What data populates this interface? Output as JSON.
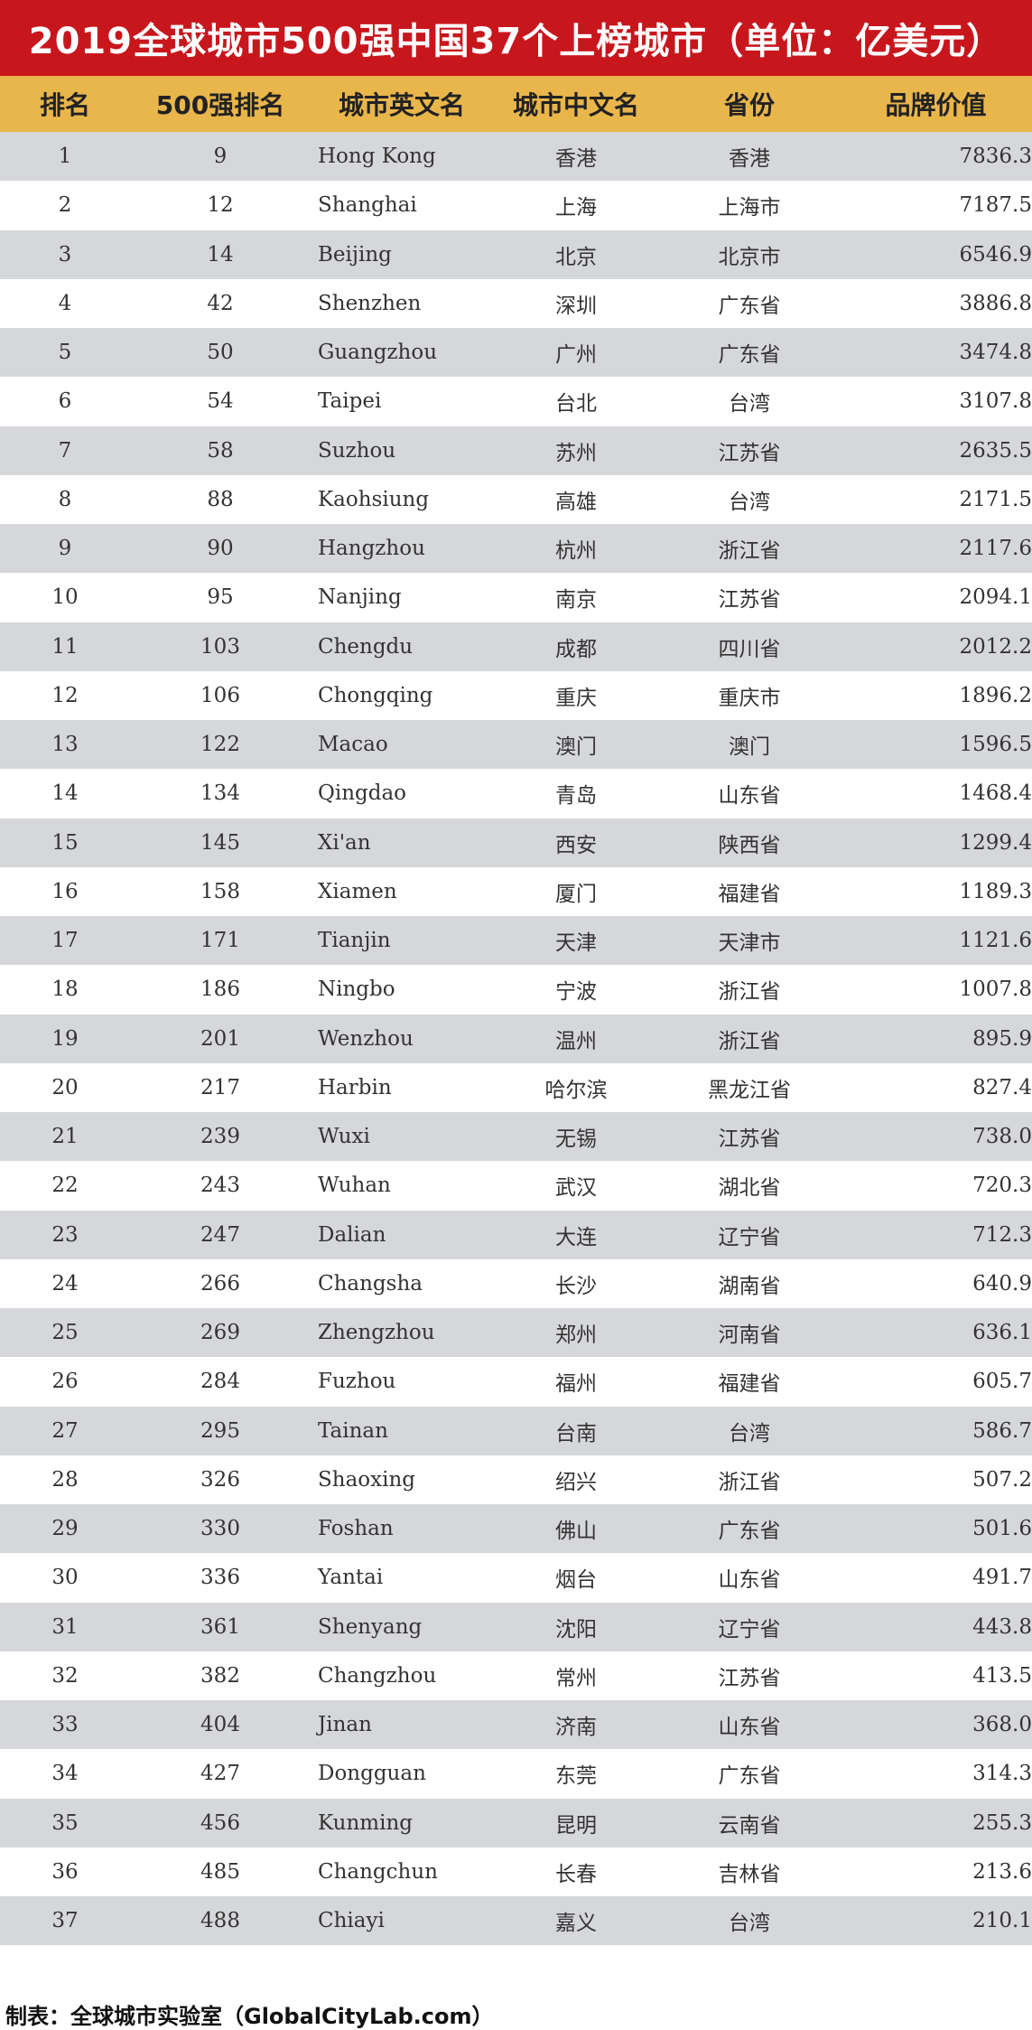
{
  "title": "2019全球城市500强中国37个上榜城市（单位：亿美元）",
  "header": [
    "排名",
    "500强排名",
    "城市英文名",
    "城市中文名",
    "省份",
    "品牌价值"
  ],
  "rows": [
    [
      "1",
      "9",
      "Hong Kong",
      "香港",
      "香港",
      "7836.3"
    ],
    [
      "2",
      "12",
      "Shanghai",
      "上海",
      "上海市",
      "7187.5"
    ],
    [
      "3",
      "14",
      "Beijing",
      "北京",
      "北京市",
      "6546.9"
    ],
    [
      "4",
      "42",
      "Shenzhen",
      "深圳",
      "广东省",
      "3886.8"
    ],
    [
      "5",
      "50",
      "Guangzhou",
      "广州",
      "广东省",
      "3474.8"
    ],
    [
      "6",
      "54",
      "Taipei",
      "台北",
      "台湾",
      "3107.8"
    ],
    [
      "7",
      "58",
      "Suzhou",
      "苏州",
      "江苏省",
      "2635.5"
    ],
    [
      "8",
      "88",
      "Kaohsiung",
      "高雄",
      "台湾",
      "2171.5"
    ],
    [
      "9",
      "90",
      "Hangzhou",
      "杭州",
      "浙江省",
      "2117.6"
    ],
    [
      "10",
      "95",
      "Nanjing",
      "南京",
      "江苏省",
      "2094.1"
    ],
    [
      "11",
      "103",
      "Chengdu",
      "成都",
      "四川省",
      "2012.2"
    ],
    [
      "12",
      "106",
      "Chongqing",
      "重庆",
      "重庆市",
      "1896.2"
    ],
    [
      "13",
      "122",
      "Macao",
      "澳门",
      "澳门",
      "1596.5"
    ],
    [
      "14",
      "134",
      "Qingdao",
      "青岛",
      "山东省",
      "1468.4"
    ],
    [
      "15",
      "145",
      "Xi'an",
      "西安",
      "陕西省",
      "1299.4"
    ],
    [
      "16",
      "158",
      "Xiamen",
      "厦门",
      "福建省",
      "1189.3"
    ],
    [
      "17",
      "171",
      "Tianjin",
      "天津",
      "天津市",
      "1121.6"
    ],
    [
      "18",
      "186",
      "Ningbo",
      "宁波",
      "浙江省",
      "1007.8"
    ],
    [
      "19",
      "201",
      "Wenzhou",
      "温州",
      "浙江省",
      "895.9"
    ],
    [
      "20",
      "217",
      "Harbin",
      "哈尔滨",
      "黑龙江省",
      "827.4"
    ],
    [
      "21",
      "239",
      "Wuxi",
      "无锡",
      "江苏省",
      "738.0"
    ],
    [
      "22",
      "243",
      "Wuhan",
      "武汉",
      "湖北省",
      "720.3"
    ],
    [
      "23",
      "247",
      "Dalian",
      "大连",
      "辽宁省",
      "712.3"
    ],
    [
      "24",
      "266",
      "Changsha",
      "长沙",
      "湖南省",
      "640.9"
    ],
    [
      "25",
      "269",
      "Zhengzhou",
      "郑州",
      "河南省",
      "636.1"
    ],
    [
      "26",
      "284",
      "Fuzhou",
      "福州",
      "福建省",
      "605.7"
    ],
    [
      "27",
      "295",
      "Tainan",
      "台南",
      "台湾",
      "586.7"
    ],
    [
      "28",
      "326",
      "Shaoxing",
      "绍兴",
      "浙江省",
      "507.2"
    ],
    [
      "29",
      "330",
      "Foshan",
      "佛山",
      "广东省",
      "501.6"
    ],
    [
      "30",
      "336",
      "Yantai",
      "烟台",
      "山东省",
      "491.7"
    ],
    [
      "31",
      "361",
      "Shenyang",
      "沈阳",
      "辽宁省",
      "443.8"
    ],
    [
      "32",
      "382",
      "Changzhou",
      "常州",
      "江苏省",
      "413.5"
    ],
    [
      "33",
      "404",
      "Jinan",
      "济南",
      "山东省",
      "368.0"
    ],
    [
      "34",
      "427",
      "Dongguan",
      "东莞",
      "广东省",
      "314.3"
    ],
    [
      "35",
      "456",
      "Kunming",
      "昆明",
      "云南省",
      "255.3"
    ],
    [
      "36",
      "485",
      "Changchun",
      "长春",
      "吉林省",
      "213.6"
    ],
    [
      "37",
      "488",
      "Chiayi",
      "嘉义",
      "台湾",
      "210.1"
    ]
  ],
  "footer": "制表：全球城市实验室（GlobalCityLab.com）",
  "colors": {
    "title_bg": "#c8161d",
    "header_bg": "#e9b64c",
    "stripe_bg": "#d6d7da"
  }
}
